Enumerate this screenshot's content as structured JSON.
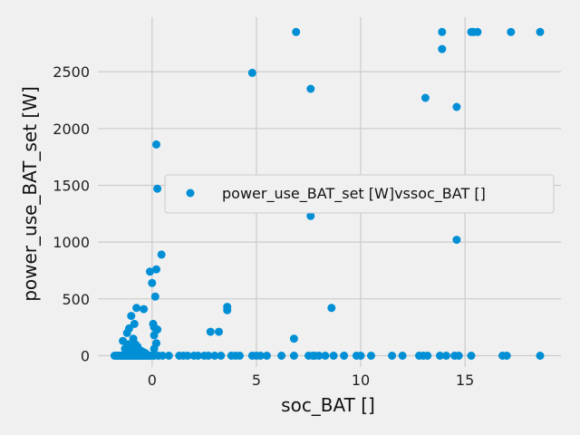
{
  "chart_data": {
    "type": "scatter",
    "xlabel": "soc_BAT []",
    "ylabel": "power_use_BAT_set [W]",
    "xlim": [
      -2.6,
      19.6
    ],
    "ylim": [
      -100,
      2980
    ],
    "x_ticks": [
      0,
      5,
      10,
      15
    ],
    "y_ticks": [
      0,
      500,
      1000,
      1500,
      2000,
      2500
    ],
    "grid": true,
    "legend_position": "right",
    "colors": {
      "series": "#008fd5",
      "background": "#f0f0f0",
      "grid": "#cbcbcb"
    },
    "series": [
      {
        "name": "power_use_BAT_set [W]vssoc_BAT []",
        "points": [
          [
            -1.8,
            0
          ],
          [
            -1.7,
            0
          ],
          [
            -1.65,
            0
          ],
          [
            -1.6,
            0
          ],
          [
            -1.55,
            0
          ],
          [
            -1.5,
            0
          ],
          [
            -1.45,
            0
          ],
          [
            -1.4,
            0
          ],
          [
            -1.35,
            0
          ],
          [
            -1.3,
            0
          ],
          [
            -1.25,
            0
          ],
          [
            -1.2,
            0
          ],
          [
            -1.15,
            0
          ],
          [
            -1.1,
            0
          ],
          [
            -1.05,
            0
          ],
          [
            -1.0,
            0
          ],
          [
            -0.95,
            0
          ],
          [
            -0.9,
            0
          ],
          [
            -0.85,
            0
          ],
          [
            -0.8,
            0
          ],
          [
            -0.75,
            0
          ],
          [
            -0.7,
            0
          ],
          [
            -0.65,
            0
          ],
          [
            -0.6,
            0
          ],
          [
            -0.55,
            0
          ],
          [
            -0.5,
            0
          ],
          [
            -0.45,
            0
          ],
          [
            -0.4,
            0
          ],
          [
            -0.35,
            0
          ],
          [
            -0.3,
            0
          ],
          [
            -0.25,
            0
          ],
          [
            -0.2,
            0
          ],
          [
            -0.15,
            0
          ],
          [
            -0.1,
            0
          ],
          [
            0.0,
            0
          ],
          [
            0.1,
            0
          ],
          [
            0.3,
            0
          ],
          [
            0.5,
            0
          ],
          [
            0.8,
            0
          ],
          [
            -1.4,
            130
          ],
          [
            -1.3,
            60
          ],
          [
            -1.2,
            200
          ],
          [
            -1.2,
            30
          ],
          [
            -1.15,
            100
          ],
          [
            -1.1,
            240
          ],
          [
            -1.05,
            50
          ],
          [
            -1.0,
            350
          ],
          [
            -0.95,
            20
          ],
          [
            -0.9,
            150
          ],
          [
            -0.9,
            40
          ],
          [
            -0.85,
            280
          ],
          [
            -0.8,
            100
          ],
          [
            -0.8,
            60
          ],
          [
            -0.75,
            420
          ],
          [
            -0.7,
            30
          ],
          [
            -0.7,
            80
          ],
          [
            -0.6,
            50
          ],
          [
            -0.55,
            20
          ],
          [
            -0.5,
            40
          ],
          [
            -0.45,
            10
          ],
          [
            -0.4,
            410
          ],
          [
            -0.4,
            30
          ],
          [
            -0.3,
            20
          ],
          [
            -0.1,
            740
          ],
          [
            0.0,
            640
          ],
          [
            0.05,
            280
          ],
          [
            0.1,
            250
          ],
          [
            0.1,
            180
          ],
          [
            0.15,
            520
          ],
          [
            0.2,
            760
          ],
          [
            0.25,
            230
          ],
          [
            0.2,
            1860
          ],
          [
            0.25,
            1470
          ],
          [
            0.45,
            890
          ],
          [
            0.2,
            110
          ],
          [
            0.1,
            60
          ],
          [
            1.3,
            0
          ],
          [
            1.5,
            0
          ],
          [
            1.7,
            0
          ],
          [
            2.0,
            0
          ],
          [
            2.2,
            0
          ],
          [
            2.5,
            0
          ],
          [
            2.7,
            0
          ],
          [
            3.0,
            0
          ],
          [
            3.3,
            0
          ],
          [
            2.8,
            210
          ],
          [
            3.2,
            210
          ],
          [
            3.6,
            400
          ],
          [
            3.6,
            430
          ],
          [
            3.8,
            0
          ],
          [
            4.0,
            0
          ],
          [
            4.2,
            0
          ],
          [
            4.8,
            0
          ],
          [
            5.0,
            0
          ],
          [
            5.2,
            0
          ],
          [
            5.5,
            0
          ],
          [
            6.2,
            0
          ],
          [
            6.8,
            0
          ],
          [
            4.8,
            2490
          ],
          [
            6.9,
            2850
          ],
          [
            6.8,
            150
          ],
          [
            7.6,
            2350
          ],
          [
            7.6,
            1230
          ],
          [
            7.6,
            1460
          ],
          [
            7.5,
            0
          ],
          [
            7.7,
            0
          ],
          [
            7.8,
            0
          ],
          [
            8.0,
            0
          ],
          [
            8.3,
            0
          ],
          [
            8.6,
            420
          ],
          [
            8.7,
            0
          ],
          [
            9.2,
            0
          ],
          [
            9.8,
            0
          ],
          [
            10.0,
            0
          ],
          [
            10.5,
            0
          ],
          [
            11.5,
            0
          ],
          [
            12.0,
            0
          ],
          [
            12.8,
            0
          ],
          [
            13.0,
            0
          ],
          [
            13.2,
            0
          ],
          [
            13.8,
            0
          ],
          [
            14.1,
            0
          ],
          [
            13.1,
            2270
          ],
          [
            13.9,
            2850
          ],
          [
            13.9,
            2700
          ],
          [
            14.6,
            2190
          ],
          [
            14.6,
            1020
          ],
          [
            14.5,
            0
          ],
          [
            14.7,
            0
          ],
          [
            15.3,
            0
          ],
          [
            15.3,
            2850
          ],
          [
            15.4,
            2850
          ],
          [
            15.6,
            2850
          ],
          [
            16.8,
            0
          ],
          [
            17.0,
            0
          ],
          [
            17.2,
            2850
          ],
          [
            18.6,
            2850
          ],
          [
            18.6,
            0
          ]
        ]
      }
    ]
  }
}
